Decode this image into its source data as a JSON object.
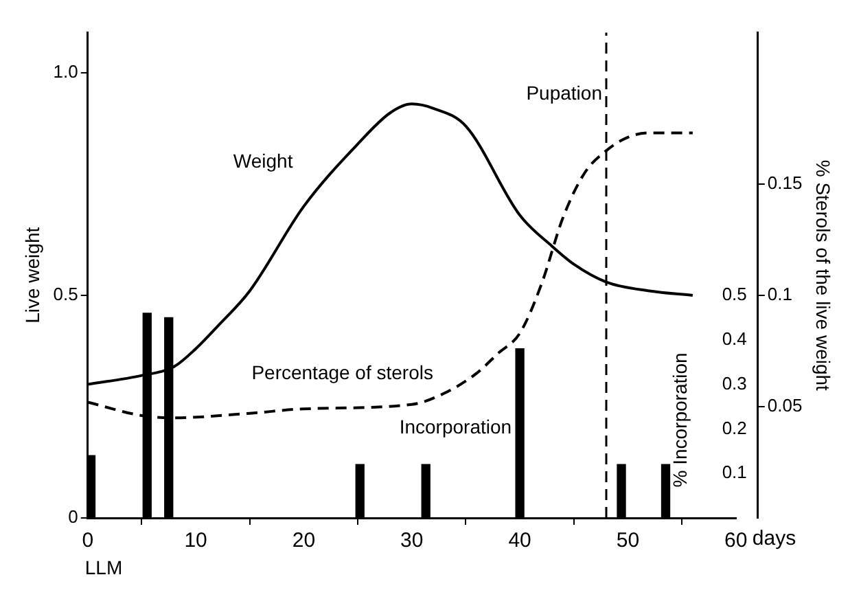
{
  "chart_data": {
    "type": "line",
    "xlabel": "days",
    "ylabel": "Live weight",
    "y2label": "% Sterols of the live weight",
    "y3label": "% Incorporation",
    "xlim": [
      0,
      60
    ],
    "xticks": [
      0,
      10,
      20,
      30,
      40,
      50,
      60
    ],
    "ylim": [
      0,
      1.09
    ],
    "yticks": [
      0,
      0.5,
      {
        "value": 1.0,
        "label": "1.0"
      }
    ],
    "y2lim": [
      0,
      0.218
    ],
    "y2ticks": [
      0.05,
      0.1,
      0.15
    ],
    "y3lim": [
      0,
      1.09
    ],
    "y3ticks": [
      0.1,
      0.2,
      0.3,
      0.4,
      0.5
    ],
    "series": [
      {
        "name": "Weight",
        "color": "#000000",
        "line_style": "solid",
        "x": [
          0,
          5,
          8,
          10,
          12,
          15,
          20,
          25,
          28,
          30,
          32,
          35,
          40,
          43,
          45,
          48,
          52,
          56
        ],
        "values": [
          0.3,
          0.32,
          0.34,
          0.38,
          0.43,
          0.51,
          0.7,
          0.84,
          0.91,
          0.93,
          0.92,
          0.88,
          0.68,
          0.61,
          0.57,
          0.53,
          0.51,
          0.5
        ]
      },
      {
        "name": "Percentage of sterols",
        "axis": "y2",
        "color": "#000000",
        "line_style": "dashed",
        "x": [
          0,
          5,
          8,
          15,
          20,
          30,
          33,
          36,
          38,
          40,
          42,
          44,
          46,
          48,
          50,
          52,
          56
        ],
        "values": [
          0.052,
          0.046,
          0.045,
          0.047,
          0.049,
          0.051,
          0.056,
          0.065,
          0.074,
          0.083,
          0.105,
          0.135,
          0.155,
          0.165,
          0.171,
          0.173,
          0.173
        ]
      },
      {
        "name": "Incorporation",
        "type": "bar",
        "axis": "y3",
        "color": "#000000",
        "x": [
          0.3,
          5.5,
          7.5,
          25.2,
          31.3,
          40,
          49.4,
          53.5
        ],
        "values": [
          0.14,
          0.46,
          0.45,
          0.12,
          0.12,
          0.38,
          0.12,
          0.12
        ]
      }
    ],
    "ref_lines": [
      {
        "axis": "x",
        "value": 48,
        "label": "Pupation",
        "line_style": "dashed",
        "color": "#000000"
      }
    ],
    "annotations": [
      "LLM"
    ],
    "grid": false,
    "legend": false
  }
}
